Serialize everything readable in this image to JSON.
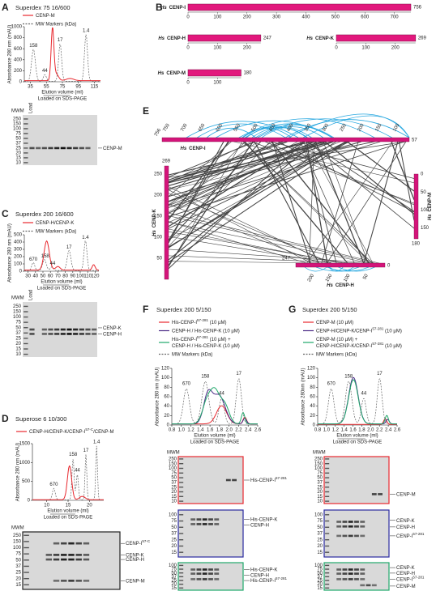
{
  "panels": {
    "A": {
      "label": "A",
      "title": "Superdex 75 16/600",
      "legend": [
        [
          {
            "text": "CENP-M"
          }
        ],
        [
          {
            "text": "MW Markers (kDa)"
          }
        ]
      ],
      "y_label": "Absorbance 280 nm (mAU)",
      "yticks": [
        "0",
        "200",
        "400",
        "600",
        "800",
        "1000"
      ],
      "xticks": [
        "35",
        "55",
        "75",
        "95",
        "115"
      ],
      "x_label": "Elution volume (ml)",
      "note": "Loaded on SDS-PAGE",
      "markers": [
        "158",
        "44",
        "17",
        "1.4"
      ],
      "gel": {
        "mwm": "MWM",
        "load": "Load",
        "ladder": [
          "250",
          "150",
          "100",
          "75",
          "50",
          "37",
          "25",
          "20",
          "15",
          "10"
        ],
        "bands": [
          {
            "text": "CENP-M"
          }
        ]
      }
    },
    "B": {
      "label": "B",
      "proteins": [
        {
          "prefix": "Hs",
          "name": "CENP-I",
          "length": 756,
          "ticks": [
            0,
            100,
            200,
            300,
            400,
            500,
            600,
            700
          ]
        },
        {
          "prefix": "Hs",
          "name": "CENP-H",
          "length": 247,
          "ticks": [
            0,
            100,
            200
          ]
        },
        {
          "prefix": "Hs",
          "name": "CENP-K",
          "length": 269,
          "ticks": [
            0,
            100,
            200
          ]
        },
        {
          "prefix": "Hs",
          "name": "CENP-M",
          "length": 180,
          "ticks": [
            0,
            100
          ]
        }
      ]
    },
    "C": {
      "label": "C",
      "title": "Superdex 200 16/600",
      "legend": [
        [
          {
            "text": "CENP-H/CENP-K"
          }
        ],
        [
          {
            "text": "MW Markers (kDa)"
          }
        ]
      ],
      "y_label": "Absorbance 280 nm (mAU)",
      "yticks": [
        "0",
        "100",
        "200",
        "300",
        "400",
        "500"
      ],
      "xticks": [
        "30",
        "40",
        "50",
        "60",
        "70",
        "80",
        "90",
        "100",
        "110",
        "120"
      ],
      "x_label": "Elution volume (ml)",
      "note": "Loaded on SDS-PAGE",
      "markers": [
        "670",
        "158",
        "44",
        "17",
        "1.4"
      ],
      "gel": {
        "mwm": "MWM",
        "load": "Load",
        "ladder": [
          "250",
          "150",
          "100",
          "75",
          "50",
          "37",
          "25",
          "20",
          "15",
          "10"
        ],
        "bands": [
          {
            "text": "CENP-K"
          },
          {
            "text": "CENP-H"
          }
        ]
      }
    },
    "D": {
      "label": "D",
      "title": "Superose 6 10/300",
      "legend": [
        [
          {
            "text": "CENP-H/CENP-K/CENP-I",
            "sup": "57-C",
            "rest": "/CENP-M"
          }
        ]
      ],
      "y_label": "Absorbance 280 nm (mAU)",
      "yticks": [
        "0",
        "500",
        "1000",
        "1500"
      ],
      "xticks": [
        "10",
        "15",
        "20"
      ],
      "x_label": "Elution volume (ml)",
      "note": "Loaded on SDS-PAGE",
      "markers": [
        "670",
        "158",
        "44",
        "17",
        "1.4"
      ],
      "gel": {
        "mwm": "MWM",
        "ladder": [
          "250",
          "150",
          "100",
          "75",
          "50",
          "37",
          "25",
          "20",
          "15"
        ],
        "bands": [
          {
            "text": "CENP-I",
            "sup": "57-C"
          },
          {
            "text": "CENP-K"
          },
          {
            "text": "CENP-H"
          },
          {
            "text": "CENP-M"
          }
        ]
      }
    },
    "E": {
      "label": "E",
      "I": {
        "prefix": "Hs",
        "name": "CENP-I",
        "start": 756,
        "end": 57,
        "ticks": [
          750,
          700,
          650,
          600,
          550,
          500,
          450,
          400,
          350,
          300,
          250,
          200,
          150,
          100
        ]
      },
      "K": {
        "prefix": "Hs",
        "name": "CENP-K",
        "end": 269,
        "ticks": [
          250,
          200,
          150,
          100,
          50
        ]
      },
      "M": {
        "prefix": "Hs",
        "name": "CENP-M",
        "end": 180,
        "ticks": [
          0,
          50,
          100,
          150
        ]
      },
      "H": {
        "prefix": "Hs",
        "name": "CENP-H",
        "start": 247,
        "end": 0,
        "ticks": [
          200,
          150,
          100,
          50
        ]
      }
    },
    "F": {
      "label": "F",
      "title": "Superdex 200 5/150",
      "legend": [
        [
          {
            "text": "His-CENP-I",
            "sup": "57-281",
            "rest": " (10 µM)"
          }
        ],
        [
          {
            "text": "CENP-H / His-CENP-K (10 µM)"
          }
        ],
        [
          {
            "text": "His-CENP-I",
            "sup": "57-281",
            "rest": " (10 µM) +"
          },
          {
            "text": "CENP-H / His-CENP-K (10 µM)"
          }
        ],
        [
          {
            "text": "MW Markers (kDa)"
          }
        ]
      ],
      "y_label": "Absorbance 280 nm (mAU)",
      "yticks": [
        "0",
        "20",
        "40",
        "60",
        "80",
        "100",
        "120"
      ],
      "xticks": [
        "0.8",
        "1.0",
        "1.2",
        "1.4",
        "1.6",
        "1.8",
        "2.0",
        "2.2",
        "2.4",
        "2.6"
      ],
      "x_label": "Elution volume (ml)",
      "note": "Loaded on SDS-PAGE",
      "markers": [
        "670",
        "158",
        "44",
        "17"
      ],
      "gels": [
        {
          "mwm": "MWM",
          "ladder": [
            "250",
            "150",
            "100",
            "75",
            "50",
            "37",
            "25",
            "20",
            "15",
            "10"
          ],
          "bands": [
            {
              "text": "His-CENP-I",
              "sup": "57-281"
            }
          ]
        },
        {
          "ladder": [
            "100",
            "75",
            "50",
            "37",
            "25",
            "20",
            "15"
          ],
          "bands": [
            {
              "text": "His-CENP-K"
            },
            {
              "text": "CENP-H"
            }
          ]
        },
        {
          "ladder": [
            "100",
            "75",
            "50",
            "37",
            "25",
            "20",
            "15"
          ],
          "bands": [
            {
              "text": "His-CENP-K"
            },
            {
              "text": "CENP-H"
            },
            {
              "text": "His-CENP-I",
              "sup": "57-281"
            }
          ]
        }
      ]
    },
    "G": {
      "label": "G",
      "title": "Superdex 200 5/150",
      "legend": [
        [
          {
            "text": "CENP-M (10 µM)"
          }
        ],
        [
          {
            "text": "CENP-H/CENP-K/CENP-I",
            "sup": "57-281",
            "rest": " (10 µM)"
          }
        ],
        [
          {
            "text": "CENP-M (10 µM) +"
          },
          {
            "text": "CENP-H/CENP-K/CENP-I",
            "sup": "57-281",
            "rest": " (10 µM)"
          }
        ],
        [
          {
            "text": "MW Markers (kDa)"
          }
        ]
      ],
      "y_label": "Absorbance 280nm (mAU)",
      "yticks": [
        "0",
        "20",
        "40",
        "60",
        "80",
        "100",
        "120"
      ],
      "xticks": [
        "0.8",
        "1.0",
        "1.2",
        "1.4",
        "1.6",
        "1.8",
        "2.0",
        "2.2",
        "2.4",
        "2.6"
      ],
      "x_label": "Elution volume (ml)",
      "note": "Loaded on SDS-PAGE",
      "markers": [
        "670",
        "158",
        "44",
        "17"
      ],
      "gels": [
        {
          "mwm": "MWM",
          "ladder": [
            "250",
            "150",
            "100",
            "75",
            "50",
            "37",
            "25",
            "20",
            "15",
            "10"
          ],
          "bands": [
            {
              "text": "CENP-M"
            }
          ]
        },
        {
          "ladder": [
            "100",
            "75",
            "50",
            "37",
            "25",
            "20",
            "15"
          ],
          "bands": [
            {
              "text": "CENP-K"
            },
            {
              "text": "CENP-H"
            },
            {
              "text": "CENP-I",
              "sup": "57-281"
            }
          ]
        },
        {
          "ladder": [
            "100",
            "75",
            "50",
            "37",
            "25",
            "20",
            "15"
          ],
          "bands": [
            {
              "text": "CENP-K"
            },
            {
              "text": "CENP-H"
            },
            {
              "text": "CENP-I",
              "sup": "57-281"
            },
            {
              "text": "CENP-M"
            }
          ]
        }
      ]
    }
  }
}
